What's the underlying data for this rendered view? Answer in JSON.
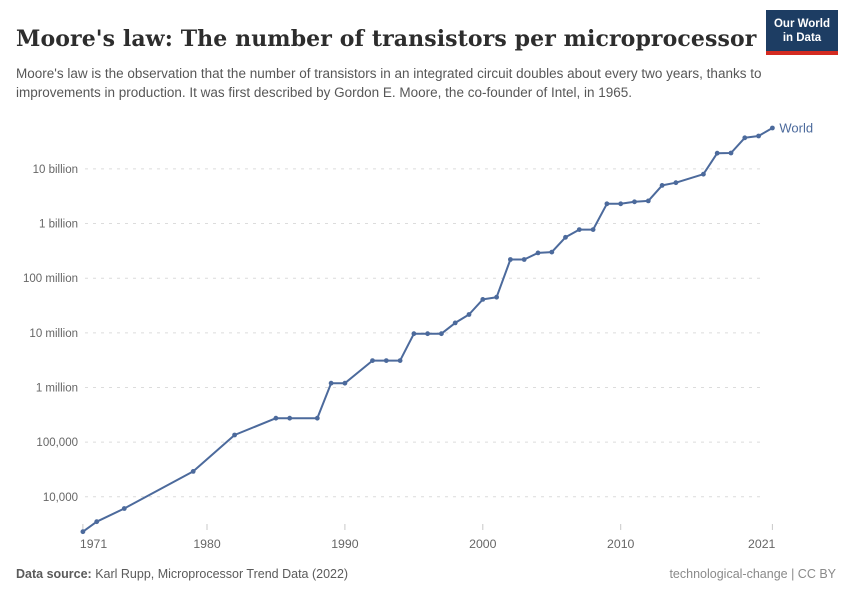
{
  "header": {
    "title": "Moore's law: The number of transistors per microprocessor",
    "subtitle": "Moore's law is the observation that the number of transistors in an integrated circuit doubles about every two years, thanks to improvements in production. It was first described by Gordon E. Moore, the co-founder of Intel, in 1965.",
    "logo": {
      "line1": "Our World",
      "line2": "in Data",
      "bg_color": "#1d3d63",
      "accent_color": "#d42b21"
    }
  },
  "chart_data": {
    "type": "line",
    "title": "Moore's law: The number of transistors per microprocessor",
    "entity_label": "World",
    "line_color": "#4c6a9c",
    "grid": true,
    "legend_position": "end-of-line",
    "x_axis": {
      "ticks": [
        1971,
        1980,
        1990,
        2000,
        2010,
        2021
      ],
      "range": [
        1970,
        2022
      ]
    },
    "y_axis": {
      "scale": "log",
      "range": [
        2000,
        100000000000
      ],
      "ticks": [
        {
          "value": 10000,
          "label": "10,000"
        },
        {
          "value": 100000,
          "label": "100,000"
        },
        {
          "value": 1000000,
          "label": "1 million"
        },
        {
          "value": 10000000,
          "label": "10 million"
        },
        {
          "value": 100000000,
          "label": "100 million"
        },
        {
          "value": 1000000000,
          "label": "1 billion"
        },
        {
          "value": 10000000000,
          "label": "10 billion"
        }
      ]
    },
    "series": [
      {
        "name": "World",
        "points": [
          [
            1971,
            2300
          ],
          [
            1972,
            3500
          ],
          [
            1974,
            6100
          ],
          [
            1979,
            29200
          ],
          [
            1982,
            135000
          ],
          [
            1985,
            274000
          ],
          [
            1986,
            274000
          ],
          [
            1988,
            274000
          ],
          [
            1989,
            1200000
          ],
          [
            1990,
            1200000
          ],
          [
            1992,
            3100000
          ],
          [
            1993,
            3100000
          ],
          [
            1994,
            3100000
          ],
          [
            1995,
            9650000
          ],
          [
            1996,
            9650000
          ],
          [
            1997,
            9650000
          ],
          [
            1998,
            15200000
          ],
          [
            1999,
            21700000
          ],
          [
            2000,
            41000000
          ],
          [
            2001,
            45000000
          ],
          [
            2002,
            220000000
          ],
          [
            2003,
            220000000
          ],
          [
            2004,
            290000000
          ],
          [
            2005,
            300000000
          ],
          [
            2006,
            560000000
          ],
          [
            2007,
            775000000
          ],
          [
            2008,
            775000000
          ],
          [
            2009,
            2300000000
          ],
          [
            2010,
            2300000000
          ],
          [
            2011,
            2500000000
          ],
          [
            2012,
            2600000000
          ],
          [
            2013,
            5000000000
          ],
          [
            2014,
            5600000000
          ],
          [
            2016,
            8000000000
          ],
          [
            2017,
            19400000000
          ],
          [
            2018,
            19500000000
          ],
          [
            2019,
            37000000000
          ],
          [
            2020,
            40000000000
          ],
          [
            2021,
            56000000000
          ]
        ]
      }
    ]
  },
  "footer": {
    "source_label": "Data source:",
    "source_text": " Karl Rupp, Microprocessor Trend Data (2022)",
    "right_text": "technological-change | CC BY"
  }
}
